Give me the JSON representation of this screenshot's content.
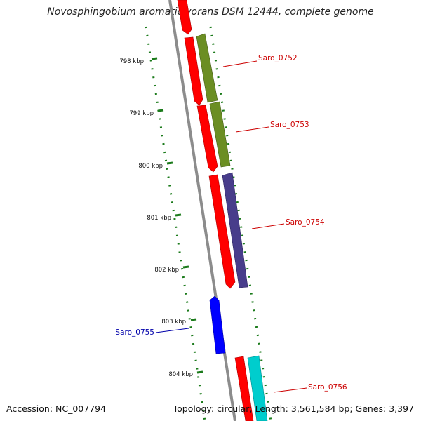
{
  "title": "Novosphingobium aromaticivorans DSM 12444, complete genome",
  "footer": {
    "accession": "Accession: NC_007794",
    "topology": "Topology: circular; Length: 3,561,584 bp; Genes: 3,397"
  },
  "ticks": [
    "798 kbp",
    "799 kbp",
    "800 kbp",
    "801 kbp",
    "802 kbp",
    "803 kbp",
    "804 kbp"
  ],
  "genes": [
    {
      "label": "Saro_0752",
      "color": "#cc0000"
    },
    {
      "label": "Saro_0753",
      "color": "#cc0000"
    },
    {
      "label": "Saro_0754",
      "color": "#cc0000"
    },
    {
      "label": "Saro_0755",
      "color": "#0000aa"
    },
    {
      "label": "Saro_0756",
      "color": "#cc0000"
    }
  ],
  "colors": {
    "cds": "#ff0000",
    "cog_olive": "#6b8e23",
    "cog_purple": "#483d8b",
    "cog_cyan": "#00cdcd",
    "gene_blue": "#0000ff",
    "backbone": "#888888",
    "gc_dots": "#1a7a1a"
  }
}
